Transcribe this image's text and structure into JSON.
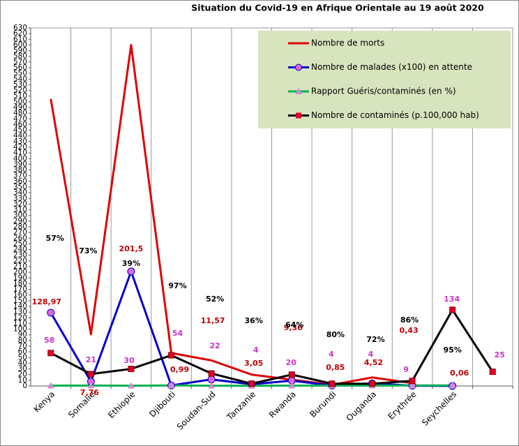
{
  "chart_data": {
    "type": "line",
    "title": "Situation du Covid-19 en Afrique Orientale au 19 août 2020",
    "categories": [
      "Kenya",
      "Somalie",
      "Ethiopie",
      "Djibouti",
      "Soudan-Sud",
      "Tanzanie",
      "Rwanda",
      "Burundi",
      "Ouganda",
      "Erythrée",
      "Seychelles",
      null
    ],
    "ylim": [
      0,
      630
    ],
    "yticks": [
      0,
      10,
      20,
      30,
      40,
      50,
      60,
      70,
      80,
      90,
      100,
      110,
      120,
      130,
      140,
      150,
      160,
      170,
      180,
      190,
      200,
      210,
      220,
      230,
      240,
      250,
      260,
      270,
      280,
      290,
      300,
      310,
      320,
      330,
      340,
      350,
      360,
      370,
      380,
      390,
      400,
      410,
      420,
      430,
      440,
      450,
      460,
      470,
      480,
      490,
      500,
      510,
      520,
      530,
      540,
      550,
      560,
      570,
      580,
      590,
      600,
      610,
      620,
      630
    ],
    "legend": "upper right",
    "series": [
      {
        "name": "Nombre de morts",
        "color": "#e00000",
        "marker": "none",
        "values": [
          505,
          91,
          600,
          58,
          45,
          20,
          11,
          2,
          15,
          5,
          null,
          null
        ]
      },
      {
        "name": "Nombre de malades (x100) en attente",
        "color": "#0000cc",
        "marker": "circle",
        "marker_color": "#e066e0",
        "label_color": "#c00000",
        "values": [
          128.97,
          7.76,
          201.5,
          0.99,
          11.57,
          3.05,
          9.36,
          0.85,
          4.52,
          0.43,
          0.06,
          null
        ],
        "value_labels": [
          "128,97",
          "7,76",
          "201,5",
          "0,99",
          "11,57",
          "3,05",
          "9,36",
          "0,85",
          "4,52",
          "0,43",
          "0,06",
          null
        ]
      },
      {
        "name": "Rapport Guéris/contaminés (en %)",
        "color": "#00b050",
        "marker": "triangle",
        "marker_color": "#c98fd0",
        "label_color": "#000000",
        "values": [
          0.57,
          0.73,
          0.39,
          0.97,
          0.52,
          0.36,
          0.64,
          0.8,
          0.72,
          0.86,
          0.95,
          null
        ],
        "value_labels": [
          "57%",
          "73%",
          "39%",
          "97%",
          "52%",
          "36%",
          "64%",
          "80%",
          "72%",
          "86%",
          "95%",
          null
        ]
      },
      {
        "name": "Nombre de contaminés (p.100,000 hab)",
        "color": "#000000",
        "marker": "square",
        "marker_color": "#e0002a",
        "label_color": "#cc33cc",
        "values": [
          58,
          21,
          30,
          54,
          22,
          4,
          20,
          4,
          4,
          9,
          134,
          25
        ]
      }
    ]
  }
}
